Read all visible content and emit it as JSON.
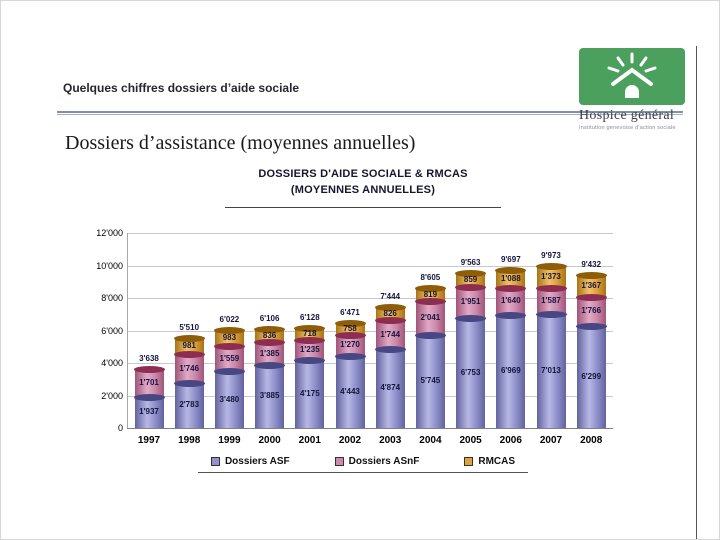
{
  "slide": {
    "header_title": "Quelques chiffres dossiers d’aide sociale",
    "main_title": "Dossiers d’assistance (moyennes annuelles)"
  },
  "logo": {
    "name": "Hospice général",
    "subtitle": "Institution genevoise d'action sociale",
    "color": "#4aa05c"
  },
  "chart_data": {
    "type": "bar",
    "stacked": true,
    "title": "DOSSIERS D'AIDE SOCIALE & RMCAS",
    "subtitle": "(MOYENNES  ANNUELLES)",
    "categories": [
      "1997",
      "1998",
      "1999",
      "2000",
      "2001",
      "2002",
      "2003",
      "2004",
      "2005",
      "2006",
      "2007",
      "2008"
    ],
    "series": [
      {
        "name": "Dossiers ASF",
        "color": "#9191cc",
        "light": "#b8b8e6",
        "edge": "#62629e",
        "cap": "#474783",
        "values": [
          1937,
          2783,
          3480,
          3885,
          4175,
          4443,
          4874,
          5745,
          6753,
          6969,
          7013,
          6299
        ]
      },
      {
        "name": "Dossiers ASnF",
        "color": "#cc8aac",
        "light": "#e2aac6",
        "edge": "#a05578",
        "cap": "#8e2d52",
        "values": [
          1701,
          1746,
          1559,
          1385,
          1235,
          1270,
          1744,
          2041,
          1951,
          1640,
          1587,
          1766
        ]
      },
      {
        "name": "RMCAS",
        "color": "#dda23a",
        "light": "#f0c268",
        "edge": "#a87418",
        "cap": "#8f5c08",
        "values": [
          0,
          981,
          983,
          836,
          718,
          758,
          826,
          819,
          859,
          1088,
          1373,
          1367
        ]
      }
    ],
    "totals": [
      3638,
      5510,
      6022,
      6106,
      6128,
      6471,
      7444,
      8605,
      9563,
      9697,
      9973,
      9432
    ],
    "ylim": [
      0,
      12000
    ],
    "ytick_step": 2000,
    "ytick_labels": [
      "0",
      "2'000",
      "4'000",
      "6'000",
      "8'000",
      "10'000",
      "12'000"
    ],
    "legend_position": "bottom",
    "grid": true
  }
}
